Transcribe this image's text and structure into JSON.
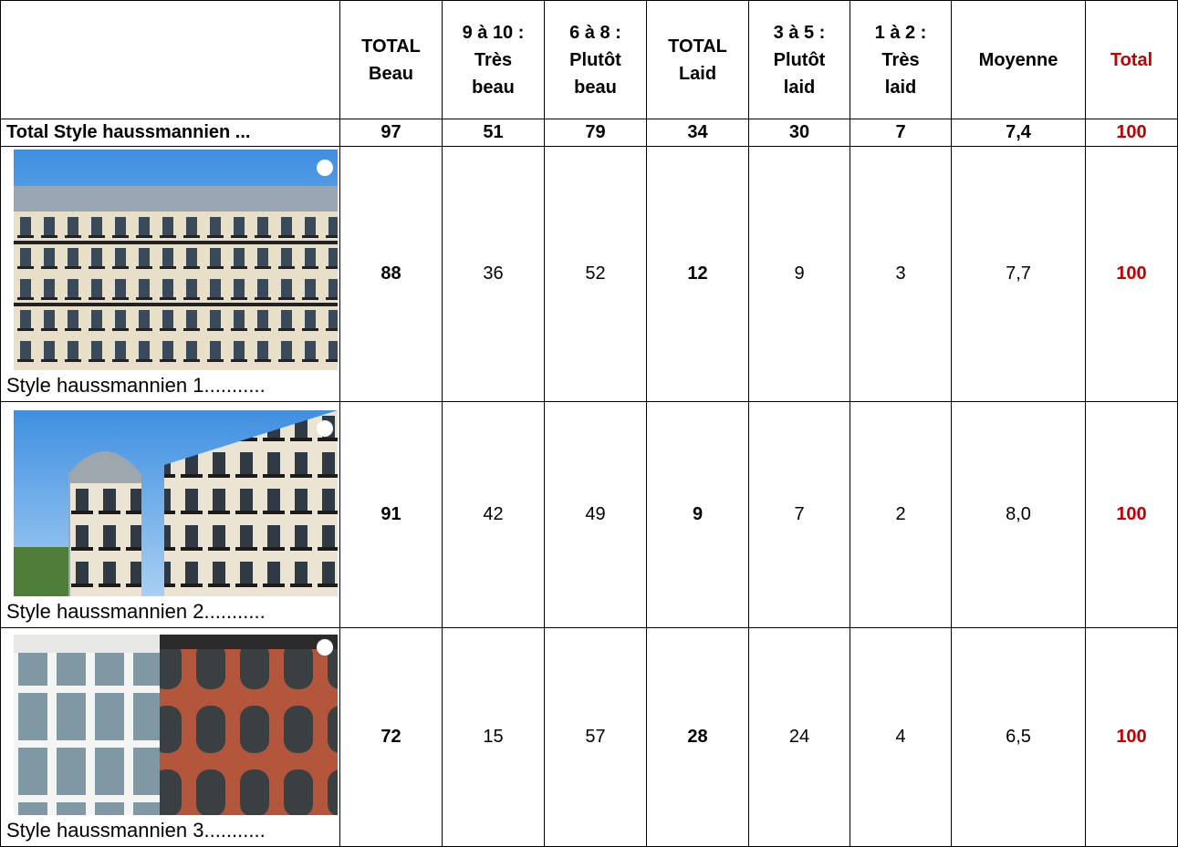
{
  "table": {
    "header": [
      "TOTAL\nBeau",
      "9 à 10 :\nTrès\nbeau",
      "6 à 8 :\nPlutôt\nbeau",
      "TOTAL\nLaid",
      "3 à 5 :\nPlutôt\nlaid",
      "1 à 2 :\nTrès\nlaid",
      "Moyenne",
      "Total"
    ],
    "total_row": {
      "label": "Total Style haussmannien ...",
      "cells": [
        "97",
        "51",
        "79",
        "34",
        "30",
        "7",
        "7,4",
        "100"
      ]
    },
    "rows": [
      {
        "label": "Style haussmannien 1...........",
        "cells": [
          "88",
          "36",
          "52",
          "12",
          "9",
          "3",
          "7,7",
          "100"
        ]
      },
      {
        "label": "Style haussmannien 2...........",
        "cells": [
          "91",
          "42",
          "49",
          "9",
          "7",
          "2",
          "8,0",
          "100"
        ]
      },
      {
        "label": "Style haussmannien 3...........",
        "cells": [
          "72",
          "15",
          "57",
          "28",
          "24",
          "4",
          "6,5",
          "100"
        ]
      }
    ]
  }
}
